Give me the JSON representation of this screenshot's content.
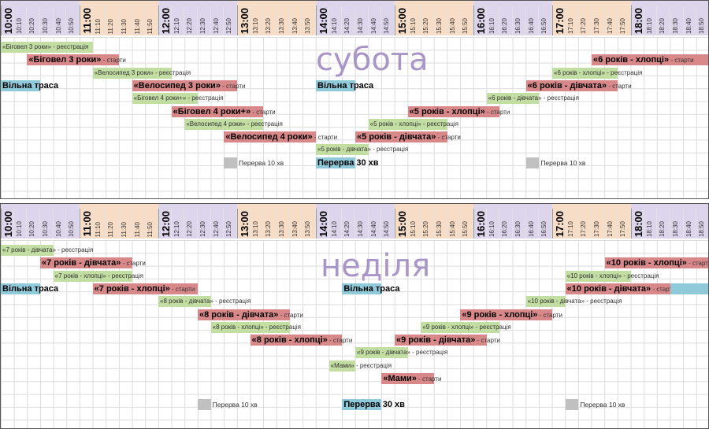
{
  "times": [
    "10:00",
    "10:10",
    "10:20",
    "10:30",
    "10:40",
    "10:50",
    "11:00",
    "11:10",
    "11:20",
    "11:30",
    "11:40",
    "11:50",
    "12:00",
    "12:10",
    "12:20",
    "12:30",
    "12:40",
    "12:50",
    "13:00",
    "13:10",
    "13:20",
    "13:30",
    "13:40",
    "13:50",
    "14:00",
    "14:10",
    "14:20",
    "14:30",
    "14:40",
    "14:50",
    "15:00",
    "15:10",
    "15:20",
    "15:30",
    "15:40",
    "15:50",
    "16:00",
    "16:10",
    "16:20",
    "16:30",
    "16:40",
    "16:50",
    "17:00",
    "17:10",
    "17:20",
    "17:30",
    "17:40",
    "17:50",
    "18:00",
    "18:10",
    "18:20",
    "18:30",
    "18:40",
    "18:50"
  ],
  "bands": [
    {
      "from": 0,
      "to": 6,
      "color": "#ddd5ec"
    },
    {
      "from": 6,
      "to": 12,
      "color": "#f8ddc6"
    },
    {
      "from": 12,
      "to": 18,
      "color": "#ddd5ec"
    },
    {
      "from": 18,
      "to": 24,
      "color": "#f8ddc6"
    },
    {
      "from": 24,
      "to": 30,
      "color": "#ddd5ec"
    },
    {
      "from": 30,
      "to": 36,
      "color": "#f8ddc6"
    },
    {
      "from": 36,
      "to": 42,
      "color": "#ddd5ec"
    },
    {
      "from": 42,
      "to": 48,
      "color": "#f8ddc6"
    },
    {
      "from": 48,
      "to": 54,
      "color": "#ddd5ec"
    }
  ],
  "suffix_start": " - старти",
  "suffix_reg": " - реєстрація",
  "days": [
    {
      "name": "субота",
      "events": [
        {
          "type": "reg",
          "text": "«Біговел 3 роки»",
          "slot": 0,
          "len": 7,
          "row": 0
        },
        {
          "type": "start",
          "text": "«Біговел 3 роки»",
          "slot": 2,
          "len": 7,
          "row": 1
        },
        {
          "type": "reg",
          "text": "«Велосипед 3 роки»",
          "slot": 7,
          "len": 6,
          "row": 2
        },
        {
          "type": "free",
          "text": "Вільна траса",
          "slot": 0,
          "len": 3,
          "row": 3
        },
        {
          "type": "start",
          "text": "«Велосипед 3 роки»",
          "slot": 10,
          "len": 8,
          "row": 3
        },
        {
          "type": "reg",
          "text": "«Біговел 4 роки+»",
          "slot": 10,
          "len": 5,
          "row": 4
        },
        {
          "type": "start",
          "text": "«Біговел 4 роки+»",
          "slot": 13,
          "len": 7,
          "row": 5
        },
        {
          "type": "reg",
          "text": "«Велосипед 4 роки»",
          "slot": 14,
          "len": 6,
          "row": 6
        },
        {
          "type": "start",
          "text": "«Велосипед 4 роки»",
          "slot": 17,
          "len": 7,
          "row": 7
        },
        {
          "type": "free",
          "text": "Вільна траса",
          "slot": 24,
          "len": 3,
          "row": 3
        },
        {
          "type": "reg",
          "text": "«5 років - дівчата»",
          "slot": 24,
          "len": 4,
          "row": 8
        },
        {
          "type": "start",
          "text": "«5 років - дівчата»",
          "slot": 27,
          "len": 7,
          "row": 7
        },
        {
          "type": "reg",
          "text": "«5 років - хлопці»",
          "slot": 28,
          "len": 6,
          "row": 6
        },
        {
          "type": "start",
          "text": "«5 років - хлопці»",
          "slot": 31,
          "len": 7,
          "row": 5
        },
        {
          "type": "reg",
          "text": "«6 років - дівчата»",
          "slot": 37,
          "len": 4,
          "row": 4
        },
        {
          "type": "start",
          "text": "«6 років - дівчата»",
          "slot": 40,
          "len": 7,
          "row": 3
        },
        {
          "type": "reg",
          "text": "«6 років - хлопці»",
          "slot": 42,
          "len": 5,
          "row": 2
        },
        {
          "type": "start",
          "text": "«6 років - хлопці»",
          "slot": 45,
          "len": 9,
          "row": 1
        }
      ],
      "breaks": [
        {
          "type": "brk",
          "text": "Перерва 10 хв",
          "slot": 17,
          "len": 1,
          "row": 9
        },
        {
          "type": "brk30",
          "text": "Перерва 30 хв",
          "slot": 24,
          "len": 3,
          "row": 9
        },
        {
          "type": "brk",
          "text": "Перерва 10 хв",
          "slot": 40,
          "len": 1,
          "row": 9
        }
      ]
    },
    {
      "name": "неділя",
      "events": [
        {
          "type": "reg",
          "text": "«7 років - дівчата»",
          "slot": 0,
          "len": 4,
          "row": 0
        },
        {
          "type": "start",
          "text": "«7 років - дівчата»",
          "slot": 3,
          "len": 7,
          "row": 1
        },
        {
          "type": "reg",
          "text": "«7 років - хлопці»",
          "slot": 4,
          "len": 6,
          "row": 2
        },
        {
          "type": "free",
          "text": "Вільна траса",
          "slot": 0,
          "len": 3,
          "row": 3
        },
        {
          "type": "start",
          "text": "«7 років - хлопці»",
          "slot": 7,
          "len": 8,
          "row": 3
        },
        {
          "type": "reg",
          "text": "«8 років - дівчата»",
          "slot": 12,
          "len": 4,
          "row": 4
        },
        {
          "type": "start",
          "text": "«8 років - дівчата»",
          "slot": 15,
          "len": 7,
          "row": 5
        },
        {
          "type": "reg",
          "text": "«8 років - хлопці»",
          "slot": 16,
          "len": 6,
          "row": 6
        },
        {
          "type": "start",
          "text": "«8 років - хлопці»",
          "slot": 19,
          "len": 7,
          "row": 7
        },
        {
          "type": "free",
          "text": "Вільна траса",
          "slot": 26,
          "len": 3,
          "row": 3
        },
        {
          "type": "start",
          "text": "«9 років - дівчата»",
          "slot": 30,
          "len": 7,
          "row": 7
        },
        {
          "type": "reg",
          "text": "«9 років - дівчата»",
          "slot": 27,
          "len": 4,
          "row": 8
        },
        {
          "type": "reg",
          "text": "«Мами»",
          "slot": 25,
          "len": 2,
          "row": 9
        },
        {
          "type": "start",
          "text": "«Мами»",
          "slot": 29,
          "len": 4,
          "row": 10
        },
        {
          "type": "reg",
          "text": "«9 років - хлопці»",
          "slot": 32,
          "len": 6,
          "row": 6
        },
        {
          "type": "start",
          "text": "«9 років - хлопці»",
          "slot": 35,
          "len": 7,
          "row": 5
        },
        {
          "type": "reg",
          "text": "«10 років - дівчата»",
          "slot": 40,
          "len": 3,
          "row": 4
        },
        {
          "type": "start",
          "text": "«10 років - дівчата»",
          "slot": 43,
          "len": 8,
          "row": 3
        },
        {
          "type": "free",
          "text": "",
          "slot": 51,
          "len": 3,
          "row": 3
        },
        {
          "type": "reg",
          "text": "«10 років - хлопці»",
          "slot": 43,
          "len": 5,
          "row": 2
        },
        {
          "type": "start",
          "text": "«10 років - хлопці»",
          "slot": 46,
          "len": 8,
          "row": 1
        }
      ],
      "breaks": [
        {
          "type": "brk",
          "text": "Перерва 10 хв",
          "slot": 15,
          "len": 1,
          "row": 12
        },
        {
          "type": "brk30",
          "text": "Перерва 30 хв",
          "slot": 26,
          "len": 3,
          "row": 12
        },
        {
          "type": "brk",
          "text": "Перерва 10 хв",
          "slot": 43,
          "len": 1,
          "row": 12
        }
      ]
    }
  ]
}
